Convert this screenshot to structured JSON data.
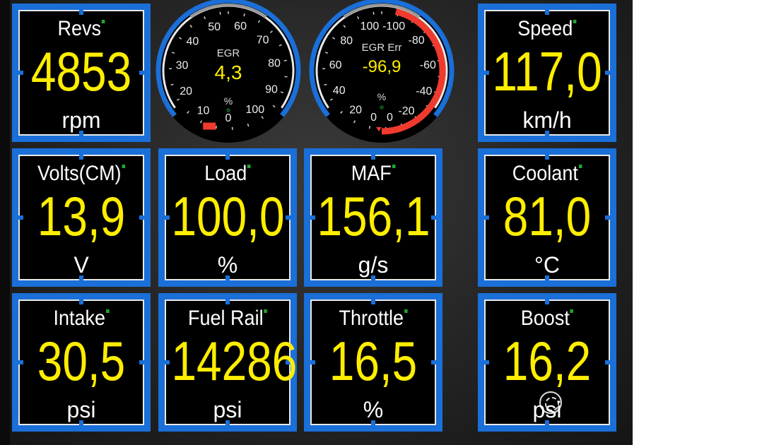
{
  "colors": {
    "frame": "#1a6fd8",
    "value": "#ffee00",
    "label": "#ffffff",
    "indicator": "#1fa82e",
    "arc": "#f03a2e"
  },
  "tiles": [
    {
      "label": "Revs",
      "value": "4853",
      "unit": "rpm"
    },
    {
      "label": "Speed",
      "value": "117,0",
      "unit": "km/h"
    },
    {
      "label": "Volts(CM)",
      "value": "13,9",
      "unit": "V"
    },
    {
      "label": "Load",
      "value": "100,0",
      "unit": "%"
    },
    {
      "label": "MAF",
      "value": "156,1",
      "unit": "g/s"
    },
    {
      "label": "Coolant",
      "value": "81,0",
      "unit": "°C"
    },
    {
      "label": "Intake",
      "value": "30,5",
      "unit": "psi"
    },
    {
      "label": "Fuel Rail",
      "value": "14286",
      "unit": "psi"
    },
    {
      "label": "Throttle",
      "value": "16,5",
      "unit": "%"
    },
    {
      "label": "Boost",
      "value": "16,2",
      "unit": "psi",
      "icon": "turbo-icon"
    }
  ],
  "gauges": [
    {
      "label": "EGR",
      "value": "4,3",
      "reading": 4.3,
      "unit": "%",
      "ticks": [
        "0",
        "10",
        "20",
        "30",
        "40",
        "50",
        "60",
        "70",
        "80",
        "90",
        "100"
      ],
      "range": [
        0,
        100
      ]
    },
    {
      "label": "EGR Err",
      "value": "-96,9",
      "reading": -96.9,
      "unit": "%",
      "ticks_pos": [
        "0",
        "20",
        "40",
        "60",
        "80",
        "100"
      ],
      "ticks_neg": [
        "-100",
        "-80",
        "-60",
        "-40",
        "-20",
        "0"
      ],
      "range": [
        -100,
        100
      ]
    }
  ]
}
